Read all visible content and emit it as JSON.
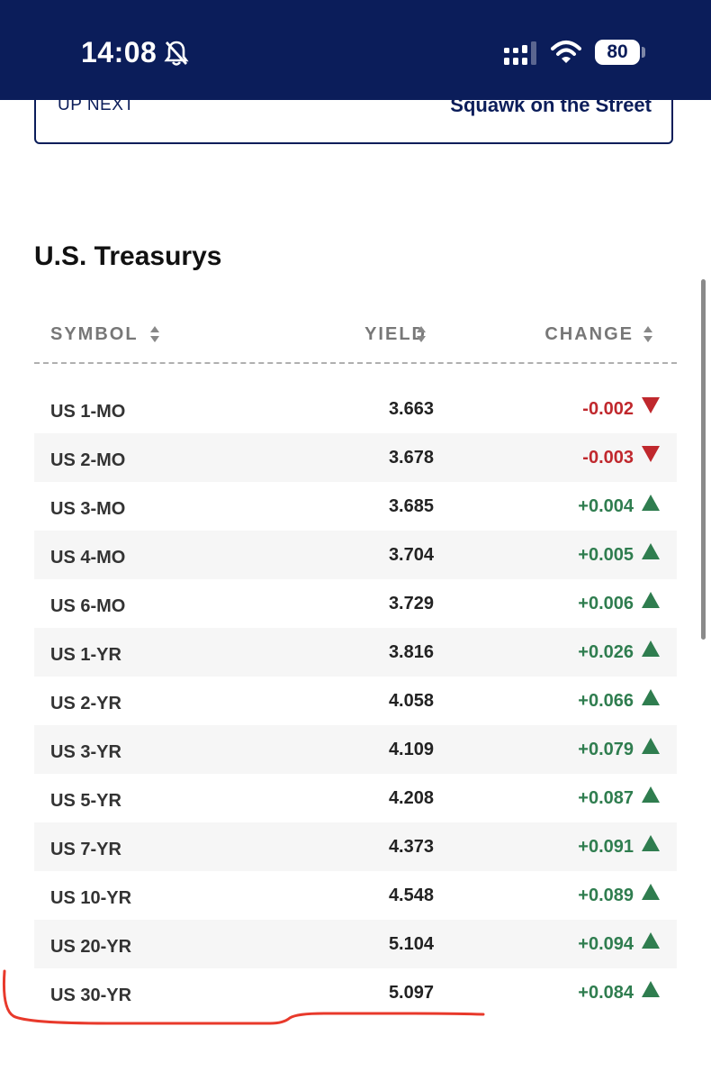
{
  "status_bar": {
    "time": "14:08",
    "battery_level": "80",
    "icons": [
      "bell-slash-icon",
      "cellular-signal-icon",
      "wifi-icon",
      "battery-icon"
    ]
  },
  "up_next": {
    "label": "UP NEXT",
    "show": "Squawk on the Street"
  },
  "section": {
    "title": "U.S. Treasurys"
  },
  "table": {
    "columns": [
      {
        "label": "SYMBOL",
        "sortable": true
      },
      {
        "label": "YIELD",
        "sortable": true
      },
      {
        "label": "CHANGE",
        "sortable": true
      }
    ],
    "rows": [
      {
        "symbol": "US 1-MO",
        "yield": "3.663",
        "change": "-0.002",
        "direction": "down"
      },
      {
        "symbol": "US 2-MO",
        "yield": "3.678",
        "change": "-0.003",
        "direction": "down"
      },
      {
        "symbol": "US 3-MO",
        "yield": "3.685",
        "change": "+0.004",
        "direction": "up"
      },
      {
        "symbol": "US 4-MO",
        "yield": "3.704",
        "change": "+0.005",
        "direction": "up"
      },
      {
        "symbol": "US 6-MO",
        "yield": "3.729",
        "change": "+0.006",
        "direction": "up"
      },
      {
        "symbol": "US 1-YR",
        "yield": "3.816",
        "change": "+0.026",
        "direction": "up"
      },
      {
        "symbol": "US 2-YR",
        "yield": "4.058",
        "change": "+0.066",
        "direction": "up"
      },
      {
        "symbol": "US 3-YR",
        "yield": "4.109",
        "change": "+0.079",
        "direction": "up"
      },
      {
        "symbol": "US 5-YR",
        "yield": "4.208",
        "change": "+0.087",
        "direction": "up"
      },
      {
        "symbol": "US 7-YR",
        "yield": "4.373",
        "change": "+0.091",
        "direction": "up"
      },
      {
        "symbol": "US 10-YR",
        "yield": "4.548",
        "change": "+0.089",
        "direction": "up"
      },
      {
        "symbol": "US 20-YR",
        "yield": "5.104",
        "change": "+0.094",
        "direction": "up"
      },
      {
        "symbol": "US 30-YR",
        "yield": "5.097",
        "change": "+0.084",
        "direction": "up"
      }
    ]
  },
  "colors": {
    "header_bg": "#0b1d5a",
    "up": "#2f7d4f",
    "down": "#c0282d",
    "annotation": "#e8392b"
  }
}
